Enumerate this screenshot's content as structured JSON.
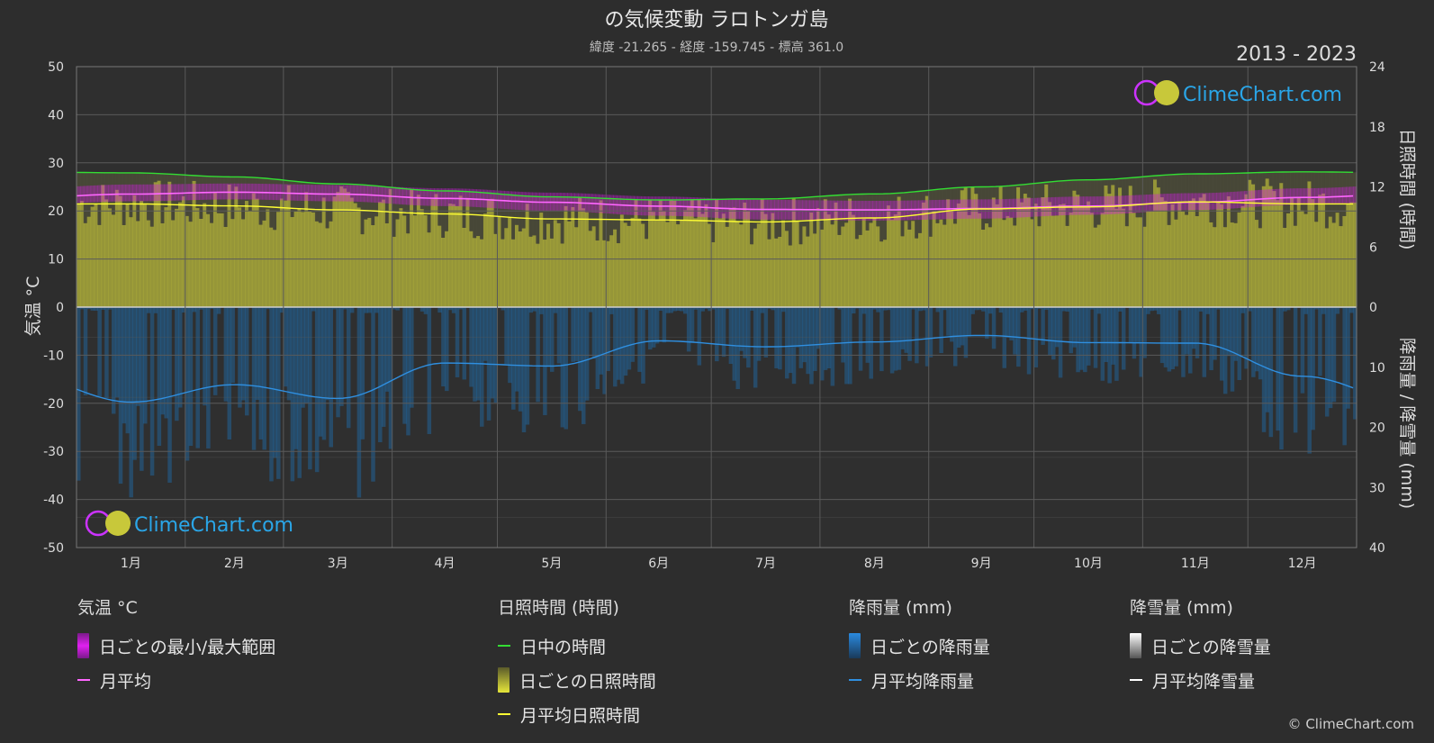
{
  "header": {
    "title": "の気候変動 ラロトンガ島",
    "subtitle": "緯度 -21.265 - 経度 -159.745 - 標高 361.0",
    "year_range": "2013 - 2023"
  },
  "watermark": {
    "text": "ClimeChart.com"
  },
  "copyright": "© ClimeChart.com",
  "colors": {
    "background": "#2d2d2d",
    "grid": "#5a5a5a",
    "temp_range": "#d21ee1",
    "temp_avg": "#ff66ff",
    "daylight": "#33dd33",
    "sunshine_daily": "#a8a83a",
    "sunshine_avg": "#ffff33",
    "rain_daily": "#1f6fb0",
    "rain_avg": "#2f8fe0",
    "snow": "#ffffff",
    "brand": "#2aa6e8"
  },
  "legend": {
    "temp": {
      "header": "気温 °C",
      "range": "日ごとの最小/最大範囲",
      "avg": "月平均"
    },
    "sun": {
      "header": "日照時間 (時間)",
      "daylight": "日中の時間",
      "daily": "日ごとの日照時間",
      "avg": "月平均日照時間"
    },
    "rain": {
      "header": "降雨量 (mm)",
      "daily": "日ごとの降雨量",
      "avg": "月平均降雨量"
    },
    "snow": {
      "header": "降雪量 (mm)",
      "daily": "日ごとの降雪量",
      "avg": "月平均降雪量"
    }
  },
  "chart_data": {
    "type": "line",
    "categories": [
      "1月",
      "2月",
      "3月",
      "4月",
      "5月",
      "6月",
      "7月",
      "8月",
      "9月",
      "10月",
      "11月",
      "12月"
    ],
    "axes": {
      "left": {
        "label": "気温 °C",
        "ticks": [
          50,
          40,
          30,
          20,
          10,
          0,
          -10,
          -20,
          -30,
          -40,
          -50
        ],
        "range": [
          -50,
          50
        ]
      },
      "right_top": {
        "label": "日照時間 (時間)",
        "ticks": [
          24,
          18,
          12,
          6,
          0
        ],
        "range": [
          0,
          24
        ]
      },
      "right_bottom": {
        "label": "降雨量 / 降雪量 (mm)",
        "ticks": [
          0,
          10,
          20,
          30,
          40
        ],
        "range": [
          0,
          40
        ]
      }
    },
    "grid": true,
    "series": [
      {
        "name": "日中の時間",
        "unit": "hours",
        "values": [
          13.4,
          13.0,
          12.3,
          11.6,
          11.0,
          10.7,
          10.8,
          11.3,
          12.0,
          12.7,
          13.3,
          13.5
        ]
      },
      {
        "name": "月平均日照時間",
        "unit": "hours",
        "values": [
          10.3,
          10.1,
          9.7,
          9.3,
          8.8,
          8.7,
          8.5,
          8.9,
          9.8,
          10.0,
          10.5,
          10.3
        ]
      },
      {
        "name": "月平均",
        "unit": "°C",
        "values": [
          23.5,
          23.9,
          23.5,
          22.6,
          21.8,
          21.0,
          20.3,
          20.2,
          20.5,
          21.0,
          21.8,
          22.8
        ]
      },
      {
        "name": "月平均降雨量",
        "unit": "mm",
        "values": [
          15.8,
          12.9,
          15.2,
          9.3,
          9.8,
          5.6,
          6.6,
          5.8,
          4.7,
          5.9,
          6.0,
          11.5
        ]
      }
    ],
    "temp_range_band": {
      "min": [
        22.0,
        22.4,
        22.0,
        21.0,
        20.0,
        19.0,
        18.2,
        18.0,
        18.4,
        19.2,
        20.2,
        21.3
      ],
      "max": [
        25.5,
        25.7,
        25.4,
        24.7,
        23.8,
        23.0,
        22.3,
        22.1,
        22.4,
        23.0,
        23.7,
        24.7
      ]
    },
    "snow_avg": [
      0,
      0,
      0,
      0,
      0,
      0,
      0,
      0,
      0,
      0,
      0,
      0
    ]
  }
}
